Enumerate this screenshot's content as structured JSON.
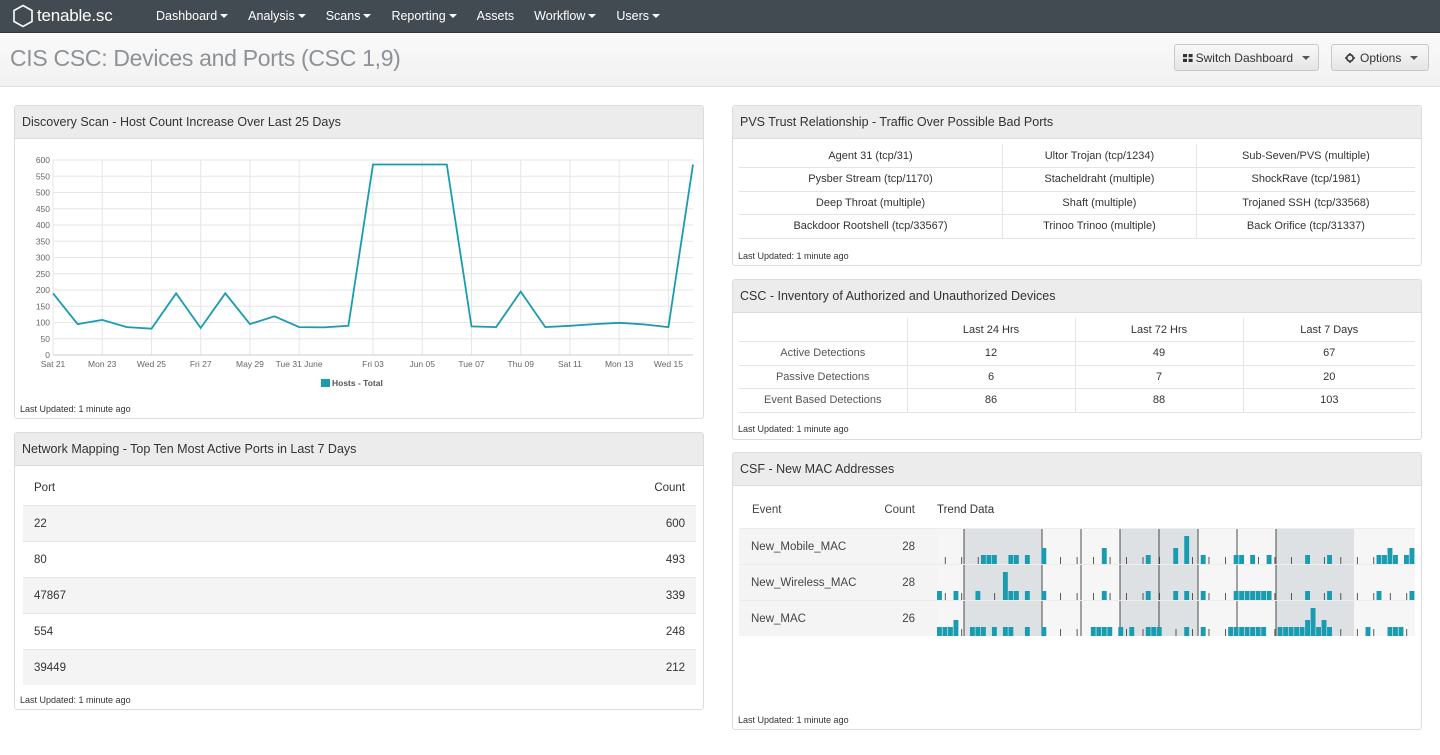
{
  "app": {
    "brand": "tenable.sc"
  },
  "nav": [
    {
      "label": "Dashboard",
      "caret": true
    },
    {
      "label": "Analysis",
      "caret": true
    },
    {
      "label": "Scans",
      "caret": true
    },
    {
      "label": "Reporting",
      "caret": true
    },
    {
      "label": "Assets",
      "caret": false
    },
    {
      "label": "Workflow",
      "caret": true
    },
    {
      "label": "Users",
      "caret": true
    }
  ],
  "page": {
    "title": "CIS CSC: Devices and Ports (CSC 1,9)",
    "switch_label": "Switch Dashboard",
    "options_label": "Options"
  },
  "discovery": {
    "title": "Discovery Scan - Host Count Increase Over Last 25 Days",
    "updated": "Last Updated: 1 minute ago",
    "chart_data": {
      "type": "line",
      "series": [
        {
          "name": "Hosts - Total",
          "values": [
            190,
            95,
            108,
            86,
            81,
            190,
            83,
            190,
            95,
            119,
            86,
            85,
            90,
            586,
            586,
            586,
            586,
            88,
            86,
            195,
            86,
            90,
            95,
            99,
            94,
            86,
            586
          ]
        }
      ],
      "x_labels": [
        "Sat 21",
        "Mon 23",
        "Wed 25",
        "Fri 27",
        "May 29",
        "Tue 31 June",
        "Fri 03",
        "Jun 05",
        "Tue 07",
        "Thu 09",
        "Sat 11",
        "Mon 13",
        "Wed 15"
      ],
      "y_ticks": [
        0,
        50,
        100,
        150,
        200,
        250,
        300,
        350,
        400,
        450,
        500,
        550,
        600
      ],
      "ylim": [
        0,
        600
      ],
      "color": "#1a9cb0",
      "legend": "bottom"
    }
  },
  "netmap": {
    "title": "Network Mapping - Top Ten Most Active Ports in Last 7 Days",
    "updated": "Last Updated: 1 minute ago",
    "col_port": "Port",
    "col_count": "Count",
    "rows": [
      {
        "port": "22",
        "count": "600"
      },
      {
        "port": "80",
        "count": "493"
      },
      {
        "port": "47867",
        "count": "339"
      },
      {
        "port": "554",
        "count": "248"
      },
      {
        "port": "39449",
        "count": "212"
      }
    ]
  },
  "pvs": {
    "title": "PVS Trust Relationship - Traffic Over Possible Bad Ports",
    "updated": "Last Updated: 1 minute ago",
    "rows": [
      [
        "Agent 31 (tcp/31)",
        "Ultor Trojan (tcp/1234)",
        "Sub-Seven/PVS (multiple)"
      ],
      [
        "Pysber Stream (tcp/1170)",
        "Stacheldraht (multiple)",
        "ShockRave (tcp/1981)"
      ],
      [
        "Deep Throat (multiple)",
        "Shaft (multiple)",
        "Trojaned SSH (tcp/33568)"
      ],
      [
        "Backdoor Rootshell (tcp/33567)",
        "Trinoo Trinoo (multiple)",
        "Back Orifice (tcp/31337)"
      ]
    ]
  },
  "inventory": {
    "title": "CSC - Inventory of Authorized and Unauthorized Devices",
    "updated": "Last Updated: 1 minute ago",
    "cols": [
      "Last 24 Hrs",
      "Last 72 Hrs",
      "Last 7 Days"
    ],
    "rows": [
      {
        "label": "Active Detections",
        "values": [
          "12",
          "49",
          "67"
        ]
      },
      {
        "label": "Passive Detections",
        "values": [
          "6",
          "7",
          "20"
        ]
      },
      {
        "label": "Event Based Detections",
        "values": [
          "86",
          "88",
          "103"
        ]
      }
    ]
  },
  "mac": {
    "title": "CSF - New MAC Addresses",
    "updated": "Last Updated: 1 minute ago",
    "col_event": "Event",
    "col_count": "Count",
    "col_trend": "Trend Data",
    "bar_color": "#1a9cb0",
    "band_color": "#dde1e3",
    "rows": [
      {
        "event": "New_Mobile_MAC",
        "count": "28"
      },
      {
        "event": "New_Wireless_MAC",
        "count": "28"
      },
      {
        "event": "New_MAC",
        "count": "26"
      }
    ]
  }
}
